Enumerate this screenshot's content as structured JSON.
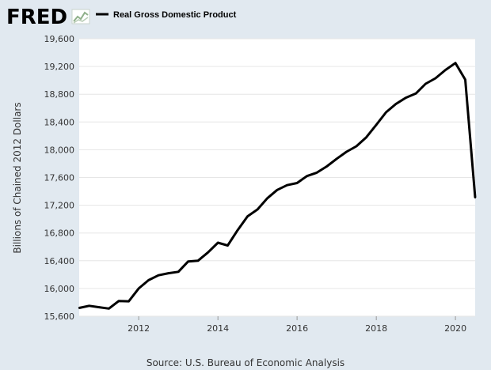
{
  "header": {
    "logo_text": "FRED",
    "legend_label": "Real Gross Domestic Product"
  },
  "source": "Source: U.S. Bureau of Economic Analysis",
  "colors": {
    "background": "#e1e9f0",
    "plot_background": "#ffffff",
    "series_line": "#000000",
    "grid": "#e6e6e6",
    "logo_graph": "#8fb08a"
  },
  "chart_data": {
    "type": "line",
    "title": "",
    "ylabel": "Billions of Chained 2012 Dollars",
    "xlabel": "",
    "ylim": [
      15600,
      19600
    ],
    "xlim": [
      "2010-07-01",
      "2020-04-01"
    ],
    "y_ticks": [
      "15,600",
      "16,000",
      "16,400",
      "16,800",
      "17,200",
      "17,600",
      "18,000",
      "18,400",
      "18,800",
      "19,200",
      "19,600"
    ],
    "x_ticks": [
      "2012",
      "2014",
      "2016",
      "2018",
      "2020"
    ],
    "grid": true,
    "legend_position": "top-left",
    "series": [
      {
        "name": "Real Gross Domestic Product",
        "points": [
          [
            "2010-07-01",
            15720
          ],
          [
            "2010-10-01",
            15750
          ],
          [
            "2011-01-01",
            15730
          ],
          [
            "2011-04-01",
            15710
          ],
          [
            "2011-07-01",
            15820
          ],
          [
            "2011-10-01",
            15815
          ],
          [
            "2012-01-01",
            16000
          ],
          [
            "2012-04-01",
            16120
          ],
          [
            "2012-07-01",
            16190
          ],
          [
            "2012-10-01",
            16220
          ],
          [
            "2013-01-01",
            16240
          ],
          [
            "2013-04-01",
            16390
          ],
          [
            "2013-07-01",
            16400
          ],
          [
            "2013-10-01",
            16520
          ],
          [
            "2014-01-01",
            16660
          ],
          [
            "2014-04-01",
            16620
          ],
          [
            "2014-07-01",
            16840
          ],
          [
            "2014-10-01",
            17040
          ],
          [
            "2015-01-01",
            17140
          ],
          [
            "2015-04-01",
            17300
          ],
          [
            "2015-07-01",
            17420
          ],
          [
            "2015-10-01",
            17490
          ],
          [
            "2016-01-01",
            17520
          ],
          [
            "2016-04-01",
            17620
          ],
          [
            "2016-07-01",
            17670
          ],
          [
            "2016-10-01",
            17760
          ],
          [
            "2017-01-01",
            17870
          ],
          [
            "2017-04-01",
            17970
          ],
          [
            "2017-07-01",
            18050
          ],
          [
            "2017-10-01",
            18180
          ],
          [
            "2018-01-01",
            18360
          ],
          [
            "2018-04-01",
            18540
          ],
          [
            "2018-07-01",
            18660
          ],
          [
            "2018-10-01",
            18750
          ],
          [
            "2019-01-01",
            18810
          ],
          [
            "2019-04-01",
            18950
          ],
          [
            "2019-07-01",
            19030
          ],
          [
            "2019-10-01",
            19150
          ],
          [
            "2020-01-01",
            19250
          ],
          [
            "2020-04-01",
            19010
          ],
          [
            "2020-07-01",
            17310
          ]
        ]
      }
    ]
  }
}
